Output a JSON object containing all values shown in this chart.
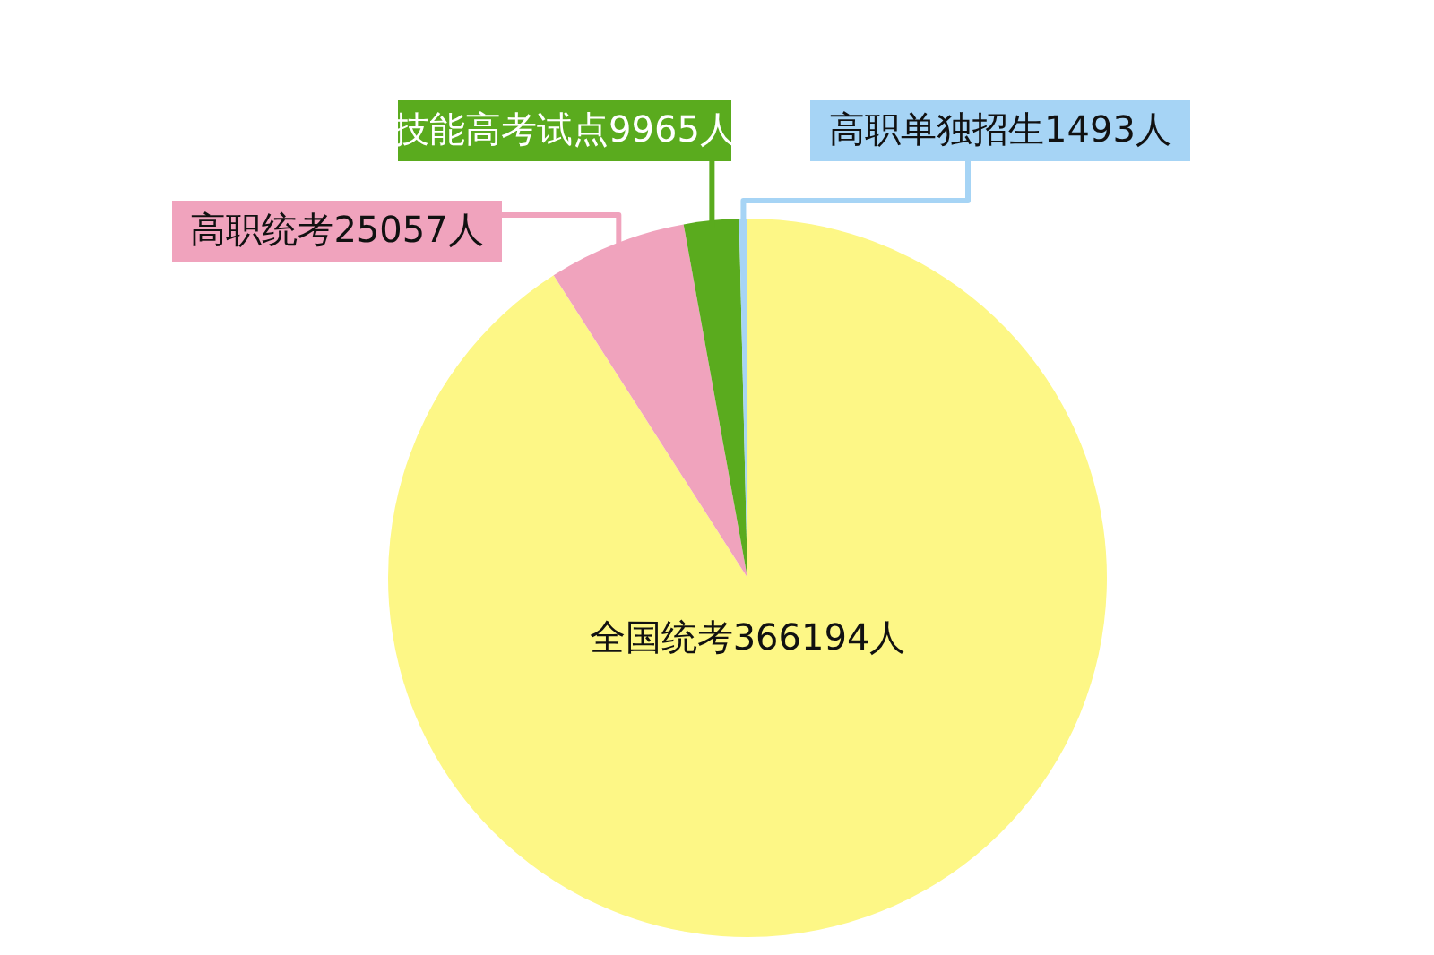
{
  "chart_data": {
    "type": "pie",
    "categories": [
      "全国统考",
      "高职统考",
      "技能高考试点",
      "高职单独招生"
    ],
    "values": [
      366194,
      25057,
      9965,
      1493
    ],
    "colors": [
      "#fdf786",
      "#f0a3bd",
      "#5aab1e",
      "#a6d4f5"
    ],
    "value_labels": [
      "366194人",
      "25057人",
      "9965人",
      "1493人"
    ],
    "legend": false
  }
}
